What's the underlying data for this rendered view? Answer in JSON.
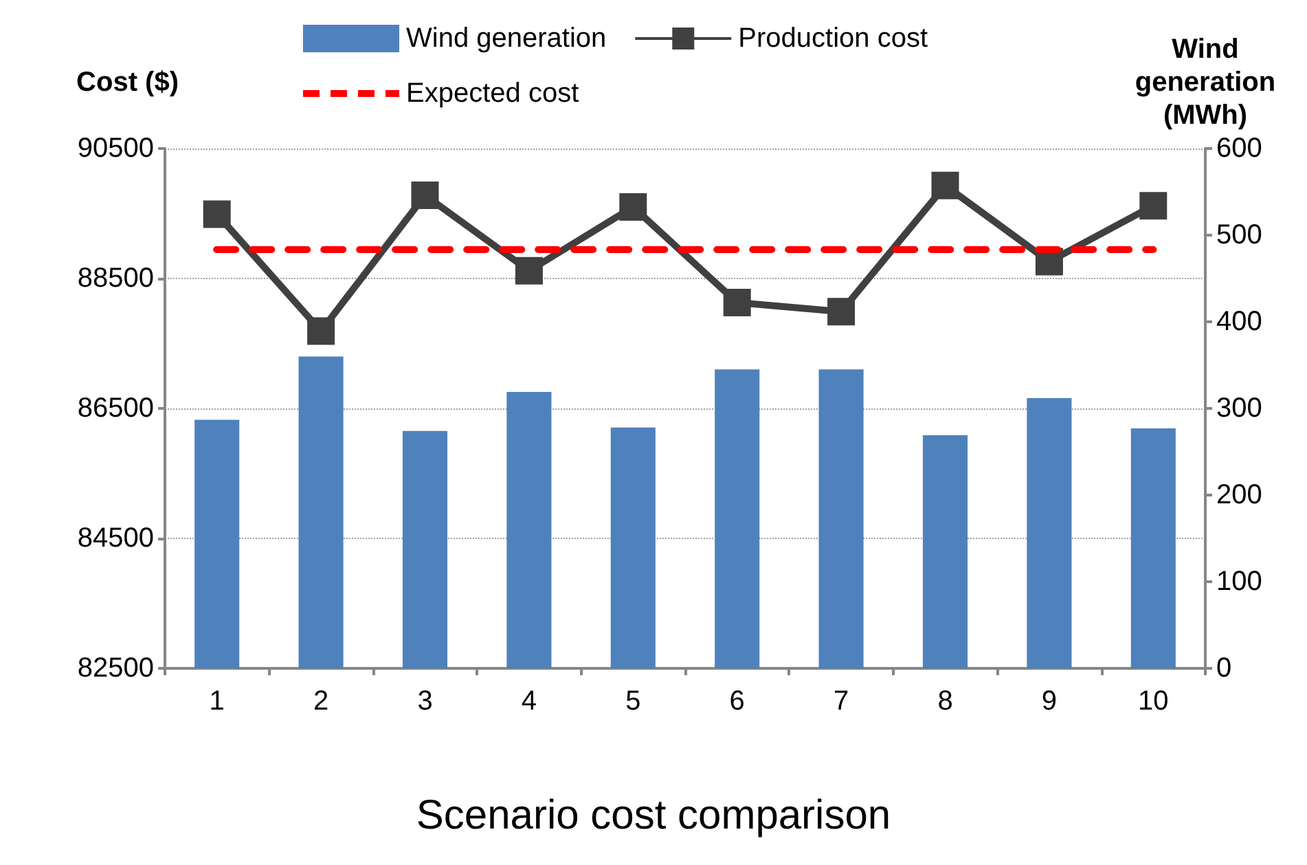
{
  "chart_data": {
    "type": "bar",
    "title": "Scenario cost comparison",
    "ylabel": "Cost ($)",
    "y2label": "Wind generation (MWh)",
    "categories": [
      "1",
      "2",
      "3",
      "4",
      "5",
      "6",
      "7",
      "8",
      "9",
      "10"
    ],
    "series": [
      {
        "name": "Wind generation",
        "axis": "y2",
        "color": "#4f81bd",
        "values": [
          287,
          360,
          274,
          319,
          278,
          345,
          345,
          269,
          312,
          277
        ]
      },
      {
        "name": "Production cost",
        "type": "line",
        "color": "#404040",
        "marker": "square",
        "values": [
          89490,
          87690,
          89780,
          88620,
          89600,
          88130,
          87990,
          89930,
          88760,
          89620
        ]
      }
    ],
    "ref_lines": [
      {
        "axis": "y",
        "value": 88950,
        "label": "Expected cost",
        "color": "#ff0000",
        "line_style": "dashed"
      }
    ],
    "ylim": [
      82500,
      90500
    ],
    "yticks": [
      82500,
      84500,
      86500,
      88500,
      90500
    ],
    "y2lim": [
      0,
      600
    ],
    "y2ticks": [
      0,
      100,
      200,
      300,
      400,
      500,
      600
    ],
    "grid": "y",
    "legend": "top"
  }
}
